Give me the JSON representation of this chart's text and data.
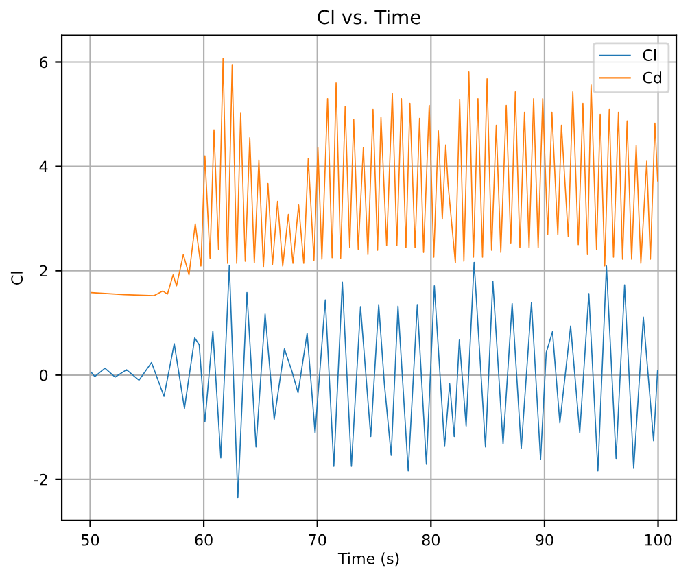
{
  "chart_data": {
    "type": "line",
    "title": "Cl vs. Time",
    "xlabel": "Time (s)",
    "ylabel": "Cl",
    "xlim": [
      47.5,
      101.6
    ],
    "ylim": [
      -2.79,
      6.51
    ],
    "xticks": [
      50,
      60,
      70,
      80,
      90,
      100
    ],
    "yticks": [
      -2,
      0,
      2,
      4,
      6
    ],
    "grid": true,
    "legend": "top right",
    "line_style": "solid",
    "marker": "none",
    "series": [
      {
        "name": "Cl",
        "color": "#1f77b4",
        "x": [
          50.1,
          50.4,
          51.3,
          52.2,
          53.2,
          54.3,
          55.4,
          56.5,
          57.4,
          58.3,
          59.2,
          59.6,
          60.1,
          60.8,
          61.5,
          62.25,
          63.0,
          63.8,
          64.6,
          65.4,
          66.2,
          67.1,
          67.75,
          68.3,
          69.1,
          69.8,
          70.7,
          71.45,
          72.2,
          73.0,
          73.8,
          74.7,
          75.4,
          75.9,
          76.5,
          77.1,
          78.0,
          78.8,
          79.6,
          80.3,
          81.2,
          81.65,
          82.05,
          82.5,
          83.1,
          83.8,
          84.8,
          85.45,
          86.35,
          87.15,
          87.95,
          88.85,
          89.65,
          90.15,
          90.7,
          91.35,
          92.3,
          93.1,
          93.9,
          94.7,
          95.45,
          96.3,
          97.05,
          97.85,
          98.7,
          99.6,
          99.95
        ],
        "values": [
          0.05,
          -0.03,
          0.13,
          -0.04,
          0.1,
          -0.1,
          0.24,
          -0.41,
          0.6,
          -0.64,
          0.71,
          0.58,
          -0.9,
          0.84,
          -1.59,
          2.1,
          -2.35,
          1.58,
          -1.38,
          1.17,
          -0.85,
          0.5,
          0.08,
          -0.34,
          0.8,
          -1.11,
          1.44,
          -1.75,
          1.78,
          -1.75,
          1.31,
          -1.18,
          1.35,
          -0.17,
          -1.54,
          1.32,
          -1.84,
          1.35,
          -1.71,
          1.71,
          -1.37,
          -0.17,
          -1.18,
          0.67,
          -0.98,
          2.16,
          -1.38,
          1.8,
          -1.32,
          1.37,
          -1.41,
          1.39,
          -1.62,
          0.43,
          0.83,
          -0.92,
          0.94,
          -1.11,
          1.56,
          -1.84,
          2.09,
          -1.6,
          1.73,
          -1.79,
          1.11,
          -1.26,
          0.08
        ]
      },
      {
        "name": "Cd",
        "color": "#ff7f0e",
        "x": [
          50.1,
          53.0,
          55.6,
          56.4,
          56.8,
          57.3,
          57.6,
          58.2,
          58.7,
          59.25,
          59.75,
          60.1,
          60.55,
          60.9,
          61.3,
          61.7,
          62.1,
          62.5,
          62.9,
          63.25,
          63.65,
          64.05,
          64.45,
          64.85,
          65.25,
          65.65,
          66.05,
          66.5,
          66.95,
          67.45,
          67.85,
          68.35,
          68.8,
          69.2,
          69.7,
          70.05,
          70.4,
          70.9,
          71.3,
          71.65,
          72.05,
          72.45,
          72.85,
          73.2,
          73.6,
          74.05,
          74.45,
          74.9,
          75.3,
          75.6,
          76.1,
          76.6,
          77.0,
          77.4,
          77.8,
          78.15,
          78.6,
          79.0,
          79.35,
          79.85,
          80.25,
          80.65,
          81.0,
          81.3,
          81.5,
          82.15,
          82.53,
          82.9,
          83.34,
          83.74,
          84.14,
          84.54,
          84.94,
          85.34,
          85.75,
          86.15,
          86.63,
          87.03,
          87.43,
          87.83,
          88.24,
          88.64,
          89.04,
          89.44,
          89.84,
          90.28,
          90.65,
          91.17,
          91.49,
          92.09,
          92.49,
          92.97,
          93.38,
          93.78,
          94.1,
          94.58,
          94.9,
          95.3,
          95.7,
          96.07,
          96.51,
          96.87,
          97.27,
          97.67,
          98.07,
          98.48,
          99.0,
          99.32,
          99.72,
          99.96
        ],
        "values": [
          1.58,
          1.54,
          1.52,
          1.61,
          1.55,
          1.92,
          1.71,
          2.31,
          1.92,
          2.9,
          2.09,
          4.2,
          2.24,
          4.7,
          2.41,
          6.07,
          2.14,
          5.94,
          2.14,
          5.02,
          2.18,
          4.55,
          2.15,
          4.12,
          2.07,
          3.67,
          2.12,
          3.33,
          2.09,
          3.08,
          2.14,
          3.26,
          2.14,
          4.15,
          2.2,
          4.36,
          2.22,
          5.3,
          2.25,
          5.6,
          2.24,
          5.15,
          2.44,
          4.9,
          2.41,
          4.36,
          2.31,
          5.09,
          2.39,
          4.94,
          2.48,
          5.4,
          2.48,
          5.3,
          2.44,
          5.21,
          2.44,
          4.92,
          2.35,
          5.17,
          2.26,
          4.68,
          2.99,
          4.41,
          3.67,
          2.15,
          5.28,
          2.18,
          5.81,
          2.26,
          5.3,
          2.26,
          5.68,
          2.39,
          4.79,
          2.35,
          5.17,
          2.52,
          5.43,
          2.44,
          5.04,
          2.44,
          5.3,
          2.44,
          5.3,
          2.69,
          5.04,
          2.69,
          4.79,
          2.65,
          5.43,
          2.5,
          5.21,
          2.31,
          5.56,
          2.41,
          5.0,
          2.09,
          5.09,
          2.26,
          5.04,
          2.22,
          4.87,
          2.22,
          4.4,
          2.14,
          4.1,
          2.22,
          4.83,
          3.72
        ]
      }
    ]
  }
}
